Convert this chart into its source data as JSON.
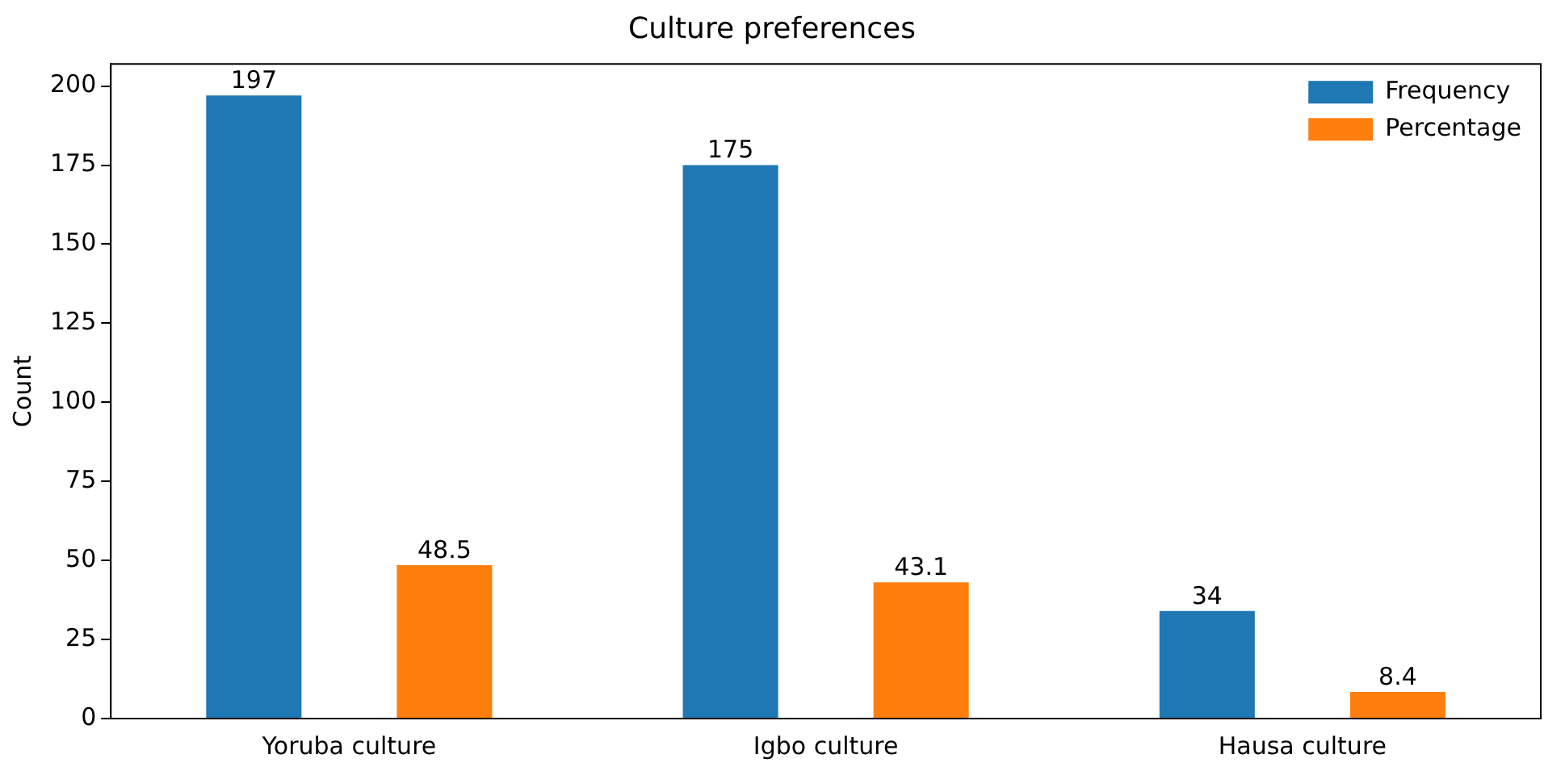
{
  "chart_data": {
    "type": "bar",
    "title": "Culture preferences",
    "ylabel": "Count",
    "categories": [
      "Yoruba culture",
      "Igbo culture",
      "Hausa culture"
    ],
    "series": [
      {
        "name": "Frequency",
        "color": "#1f77b4",
        "values": [
          197,
          175,
          34
        ]
      },
      {
        "name": "Percentage",
        "color": "#ff7f0e",
        "values": [
          48.5,
          43.1,
          8.4
        ]
      }
    ],
    "ylim": [
      0,
      207
    ],
    "yticks": [
      0,
      25,
      50,
      75,
      100,
      125,
      150,
      175,
      200
    ],
    "data_labels": true,
    "legend": "top right",
    "grid": false
  }
}
